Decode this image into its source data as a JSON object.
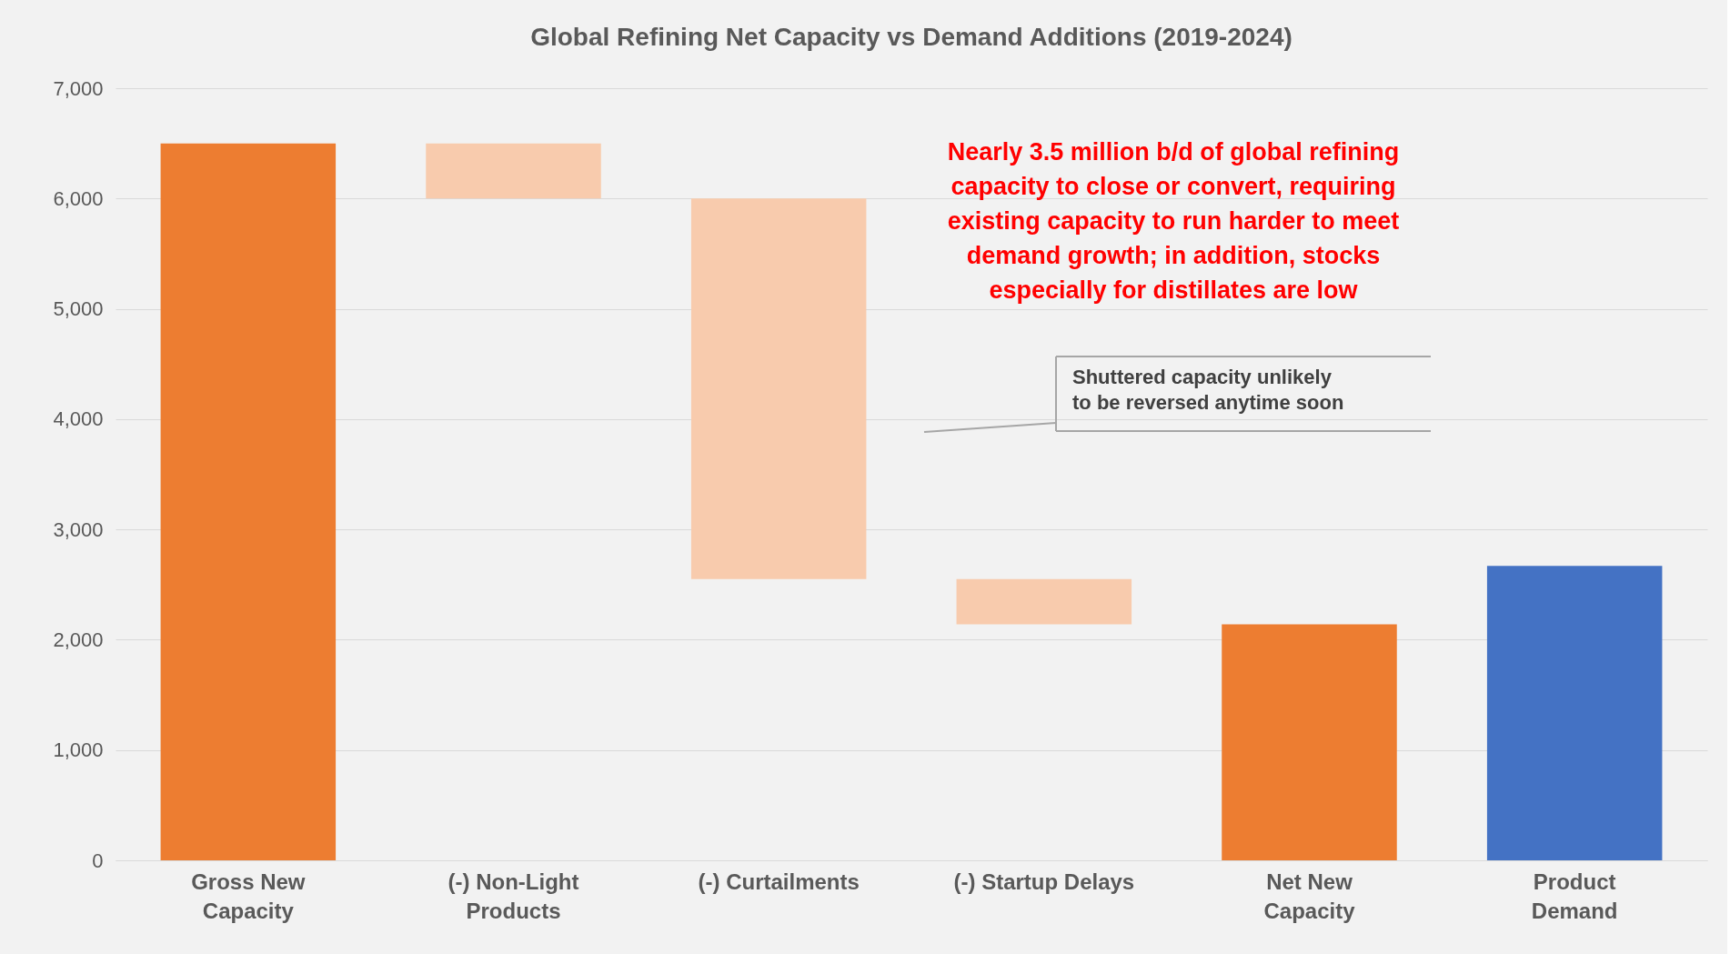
{
  "chart_data": {
    "type": "bar",
    "title": "Global Refining Net Capacity vs Demand Additions (2019-2024)",
    "categories": [
      "Gross New\nCapacity",
      "(-) Non-Light\nProducts",
      "(-) Curtailments",
      "(-) Startup Delays",
      "Net New\nCapacity",
      "Product\nDemand"
    ],
    "values": [
      6500,
      500,
      3450,
      410,
      2140,
      2670
    ],
    "base": [
      0,
      6000,
      2550,
      2140,
      0,
      0
    ],
    "colors": [
      "#ed7d31",
      "#f8cbad",
      "#f8cbad",
      "#f8cbad",
      "#ed7d31",
      "#4472c4"
    ],
    "ylim": [
      0,
      7000
    ],
    "yticks": [
      0,
      {
        "value": 1000,
        "label": "1,000"
      },
      {
        "value": 2000,
        "label": "2,000"
      },
      {
        "value": 3000,
        "label": "3,000"
      },
      {
        "value": 4000,
        "label": "4,000"
      },
      {
        "value": 5000,
        "label": "5,000"
      },
      {
        "value": 6000,
        "label": "6,000"
      },
      {
        "value": 7000,
        "label": "7,000"
      }
    ],
    "grid": "y",
    "annotations": [
      "Nearly 3.5 million b/d of global refining\ncapacity to close or convert, requiring\nexisting capacity to run harder to meet\ndemand growth; in addition, stocks\nespecially for distillates are low",
      "Shuttered capacity unlikely\nto be reversed anytime soon"
    ]
  }
}
